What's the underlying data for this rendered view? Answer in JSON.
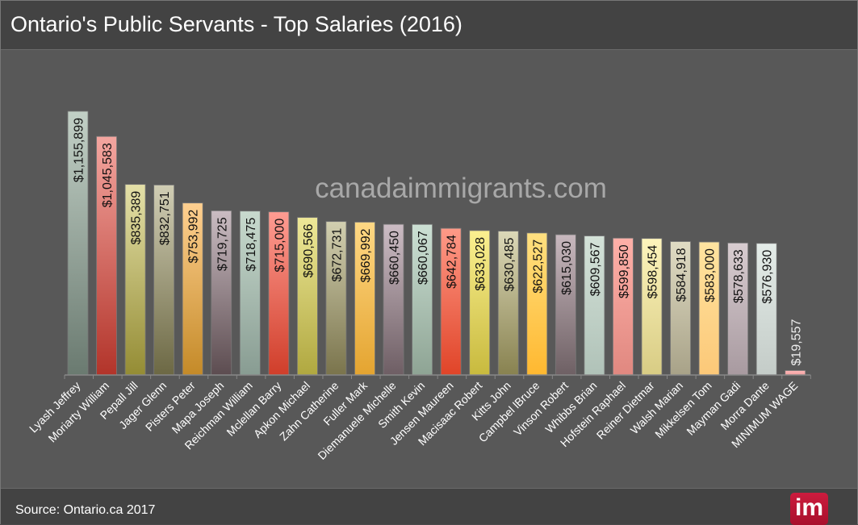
{
  "header": {
    "title": "Ontario's Public Servants - Top Salaries (2016)"
  },
  "footer": {
    "source": "Source: Ontario.ca 2017",
    "logo_text": "im"
  },
  "watermark": "canadaimmigrants.com",
  "chart_data": {
    "type": "bar",
    "title": "Ontario's Public Servants - Top Salaries (2016)",
    "xlabel": "",
    "ylabel": "",
    "ylim": [
      0,
      1200000
    ],
    "grid": false,
    "categories": [
      "Lyash Jeffrey",
      "Moriarty William",
      "Pepall Jill",
      "Jager Glenn",
      "Pisters Peter",
      "Mapa Joseph",
      "Reichman William",
      "Mclellan Barry",
      "Apkon Michael",
      "Zahn Catherine",
      "Fuller Mark",
      "Diemanuele Michelle",
      "Smith Kevin",
      "Jensen Maureen",
      "Macisaac Robert",
      "Kitts John",
      "Campbel lBruce",
      "Vinson Robert",
      "Whibbs Brian",
      "Hofstein Raphael",
      "Reiner Dietmar",
      "Walsh Marian",
      "Mikkelsen Tom",
      "Mayman Gadi",
      "Morra Dante",
      "MINIMUM WAGE"
    ],
    "values": [
      1155899,
      1045583,
      835389,
      832751,
      753992,
      719725,
      718475,
      715000,
      690566,
      672731,
      669992,
      660450,
      660067,
      642784,
      633028,
      630485,
      622527,
      615030,
      609567,
      599850,
      598454,
      584918,
      583000,
      578633,
      576930,
      19557
    ],
    "data_labels": [
      "$1,155,899",
      "$1,045,583",
      "$835,389",
      "$832,751",
      "$753,992",
      "$719,725",
      "$718,475",
      "$715,000",
      "$690,566",
      "$672,731",
      "$669,992",
      "$660,450",
      "$660,067",
      "$642,784",
      "$633,028",
      "$630,485",
      "$622,527",
      "$615,030",
      "$609,567",
      "$599,850",
      "$598,454",
      "$584,918",
      "$583,000",
      "$578,633",
      "$576,930",
      "$19,557"
    ],
    "colors": [
      [
        "#c2d0c6",
        "#6a7a70"
      ],
      [
        "#f4a6a0",
        "#b2342a"
      ],
      [
        "#e4e0a8",
        "#948c34"
      ],
      [
        "#d0cdb4",
        "#6c6844"
      ],
      [
        "#ffd090",
        "#c48a28"
      ],
      [
        "#cabcc2",
        "#5c4c50"
      ],
      [
        "#c8dace",
        "#889c92"
      ],
      [
        "#ff9c92",
        "#d03e2a"
      ],
      [
        "#eee898",
        "#b0a840"
      ],
      [
        "#d2cfb0",
        "#7a744c"
      ],
      [
        "#ffd884",
        "#e4a430"
      ],
      [
        "#ccbcc4",
        "#6e5e64"
      ],
      [
        "#cce0d4",
        "#8ea494"
      ],
      [
        "#ff9a88",
        "#e04428"
      ],
      [
        "#fbf090",
        "#c8ba3e"
      ],
      [
        "#dcd8b8",
        "#888250"
      ],
      [
        "#ffe080",
        "#ffb830"
      ],
      [
        "#c8b8be",
        "#6e6064"
      ],
      [
        "#d4e2d8",
        "#b0c2b8"
      ],
      [
        "#ffb0a8",
        "#e08880"
      ],
      [
        "#fdf4bc",
        "#d8cc84"
      ],
      [
        "#e0dcc4",
        "#a8a288"
      ],
      [
        "#ffe4a0",
        "#fcc878"
      ],
      [
        "#d8ccd0",
        "#a89aa0"
      ],
      [
        "#e4ece8",
        "#c4ccc8"
      ],
      [
        "#ffb8b8",
        "#f0a0a0"
      ]
    ]
  }
}
